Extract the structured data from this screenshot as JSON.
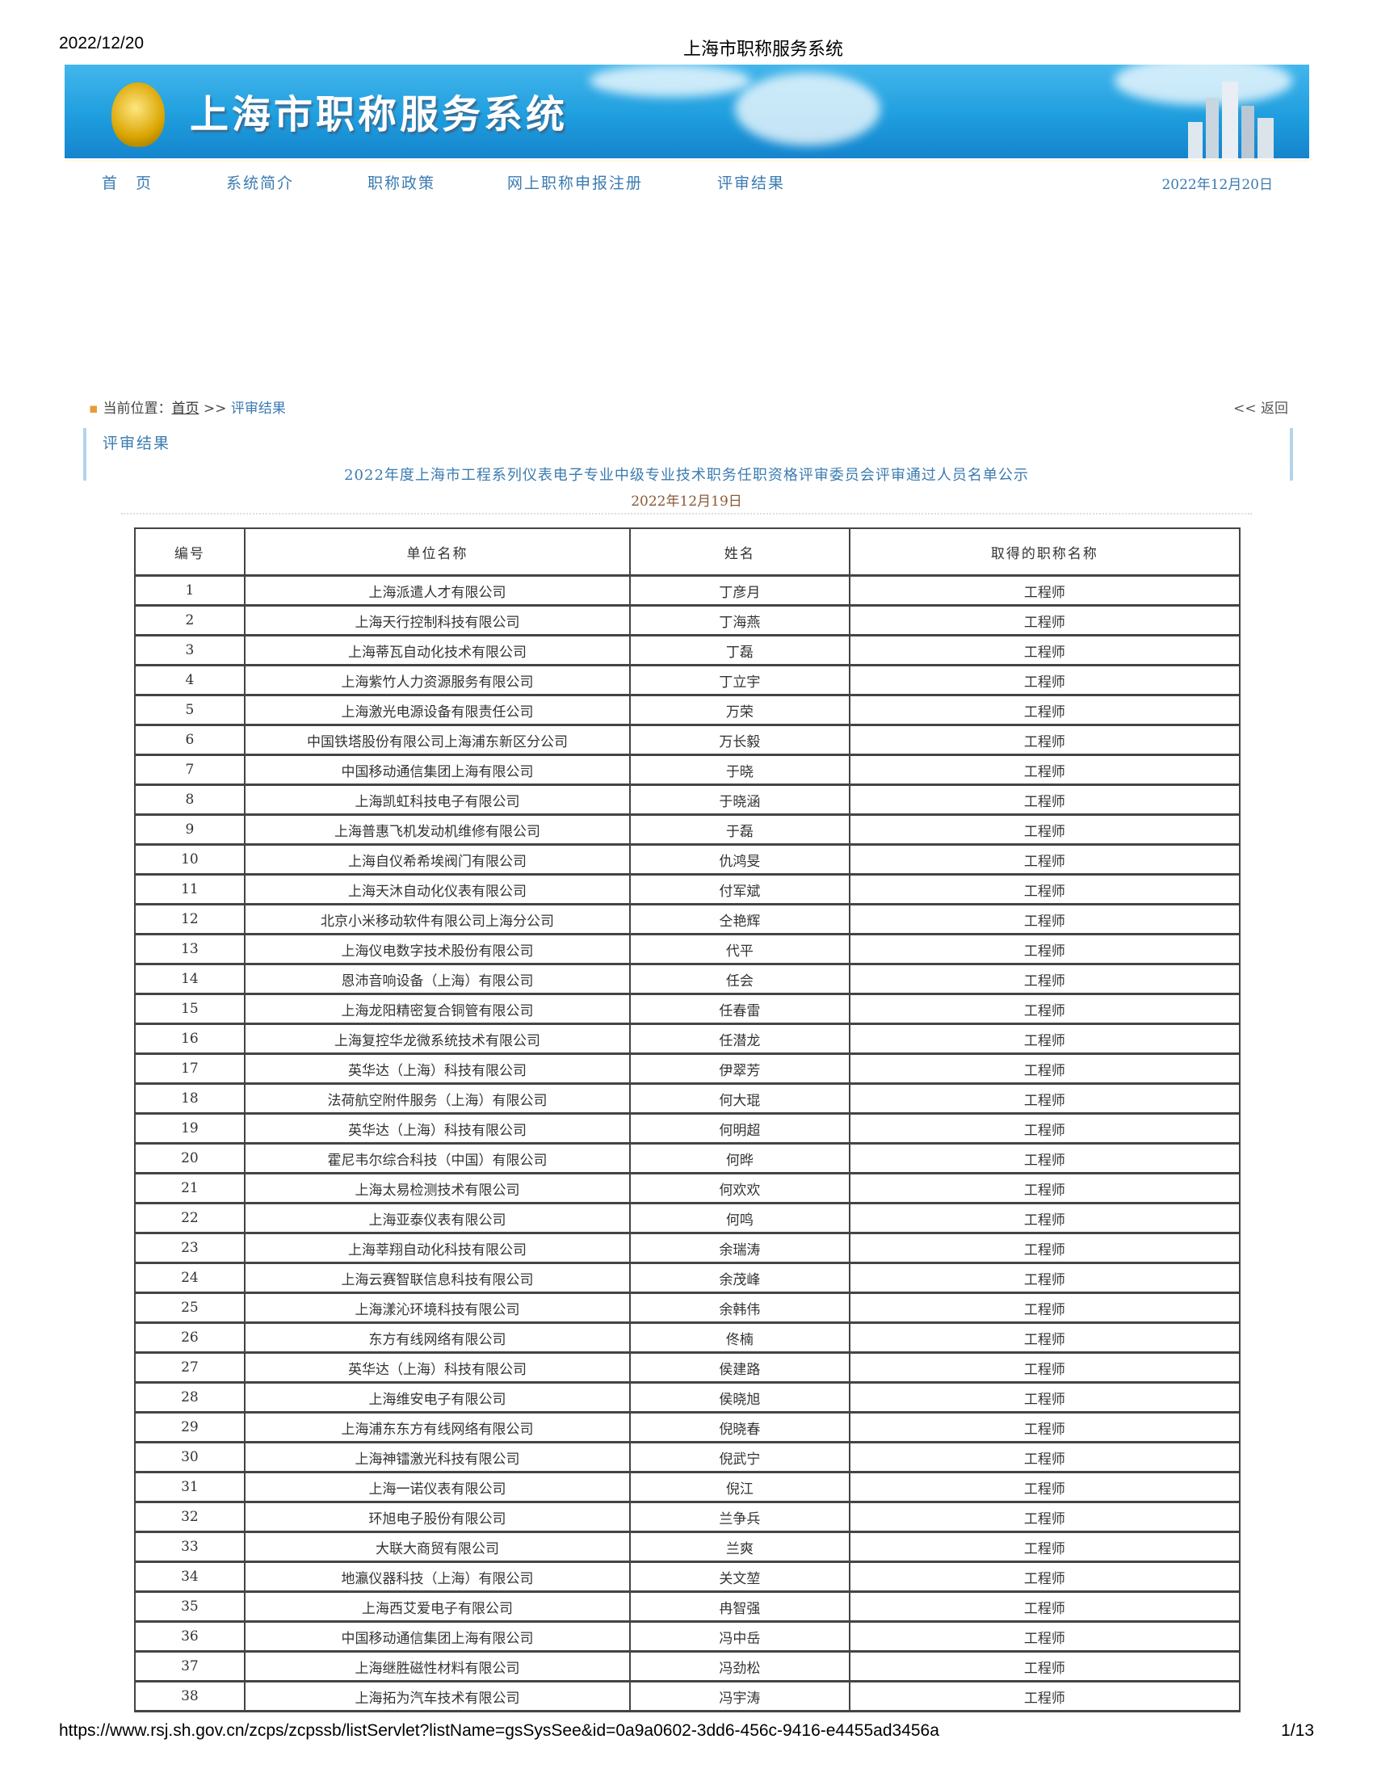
{
  "print_header": {
    "date": "2022/12/20",
    "title": "上海市职称服务系统"
  },
  "banner": {
    "title": "上海市职称服务系统"
  },
  "nav": {
    "items": [
      "首　页",
      "系统简介",
      "职称政策",
      "网上职称申报注册",
      "评审结果"
    ],
    "date": "2022年12月20日"
  },
  "breadcrumb": {
    "label": "当前位置：",
    "home": "首页",
    "sep": " >> ",
    "current": "评审结果",
    "back": "<< 返回"
  },
  "panel": {
    "title": "评审结果"
  },
  "notice": {
    "title": "2022年度上海市工程系列仪表电子专业中级专业技术职务任职资格评审委员会评审通过人员名单公示",
    "date": "2022年12月19日"
  },
  "table": {
    "headers": [
      "编号",
      "单位名称",
      "姓名",
      "取得的职称名称"
    ],
    "rows": [
      [
        "1",
        "上海派遣人才有限公司",
        "丁彦月",
        "工程师"
      ],
      [
        "2",
        "上海天行控制科技有限公司",
        "丁海燕",
        "工程师"
      ],
      [
        "3",
        "上海蒂瓦自动化技术有限公司",
        "丁磊",
        "工程师"
      ],
      [
        "4",
        "上海紫竹人力资源服务有限公司",
        "丁立宇",
        "工程师"
      ],
      [
        "5",
        "上海激光电源设备有限责任公司",
        "万荣",
        "工程师"
      ],
      [
        "6",
        "中国铁塔股份有限公司上海浦东新区分公司",
        "万长毅",
        "工程师"
      ],
      [
        "7",
        "中国移动通信集团上海有限公司",
        "于晓",
        "工程师"
      ],
      [
        "8",
        "上海凯虹科技电子有限公司",
        "于晓涵",
        "工程师"
      ],
      [
        "9",
        "上海普惠飞机发动机维修有限公司",
        "于磊",
        "工程师"
      ],
      [
        "10",
        "上海自仪希希埃阀门有限公司",
        "仇鸿旻",
        "工程师"
      ],
      [
        "11",
        "上海天沐自动化仪表有限公司",
        "付军斌",
        "工程师"
      ],
      [
        "12",
        "北京小米移动软件有限公司上海分公司",
        "仝艳辉",
        "工程师"
      ],
      [
        "13",
        "上海仪电数字技术股份有限公司",
        "代平",
        "工程师"
      ],
      [
        "14",
        "恩沛音响设备（上海）有限公司",
        "任会",
        "工程师"
      ],
      [
        "15",
        "上海龙阳精密复合铜管有限公司",
        "任春雷",
        "工程师"
      ],
      [
        "16",
        "上海复控华龙微系统技术有限公司",
        "任潜龙",
        "工程师"
      ],
      [
        "17",
        "英华达（上海）科技有限公司",
        "伊翠芳",
        "工程师"
      ],
      [
        "18",
        "法荷航空附件服务（上海）有限公司",
        "何大琨",
        "工程师"
      ],
      [
        "19",
        "英华达（上海）科技有限公司",
        "何明超",
        "工程师"
      ],
      [
        "20",
        "霍尼韦尔综合科技（中国）有限公司",
        "何晔",
        "工程师"
      ],
      [
        "21",
        "上海太易检测技术有限公司",
        "何欢欢",
        "工程师"
      ],
      [
        "22",
        "上海亚泰仪表有限公司",
        "何鸣",
        "工程师"
      ],
      [
        "23",
        "上海莘翔自动化科技有限公司",
        "余瑞涛",
        "工程师"
      ],
      [
        "24",
        "上海云赛智联信息科技有限公司",
        "余茂峰",
        "工程师"
      ],
      [
        "25",
        "上海漾沁环境科技有限公司",
        "余韩伟",
        "工程师"
      ],
      [
        "26",
        "东方有线网络有限公司",
        "佟楠",
        "工程师"
      ],
      [
        "27",
        "英华达（上海）科技有限公司",
        "侯建路",
        "工程师"
      ],
      [
        "28",
        "上海维安电子有限公司",
        "侯晓旭",
        "工程师"
      ],
      [
        "29",
        "上海浦东东方有线网络有限公司",
        "倪晓春",
        "工程师"
      ],
      [
        "30",
        "上海神镭激光科技有限公司",
        "倪武宁",
        "工程师"
      ],
      [
        "31",
        "上海一诺仪表有限公司",
        "倪江",
        "工程师"
      ],
      [
        "32",
        "环旭电子股份有限公司",
        "兰争兵",
        "工程师"
      ],
      [
        "33",
        "大联大商贸有限公司",
        "兰爽",
        "工程师"
      ],
      [
        "34",
        "地瀛仪器科技（上海）有限公司",
        "关文堃",
        "工程师"
      ],
      [
        "35",
        "上海西艾爱电子有限公司",
        "冉智强",
        "工程师"
      ],
      [
        "36",
        "中国移动通信集团上海有限公司",
        "冯中岳",
        "工程师"
      ],
      [
        "37",
        "上海继胜磁性材料有限公司",
        "冯劲松",
        "工程师"
      ],
      [
        "38",
        "上海拓为汽车技术有限公司",
        "冯宇涛",
        "工程师"
      ]
    ]
  },
  "print_footer": {
    "url": "https://www.rsj.sh.gov.cn/zcps/zcpssb/listServlet?listName=gsSysSee&id=0a9a0602-3dd6-456c-9416-e4455ad3456a",
    "page": "1/13"
  },
  "colors": {
    "link": "#3b7bb0",
    "banner": "#1f9ede",
    "date": "#8a5a3a"
  }
}
